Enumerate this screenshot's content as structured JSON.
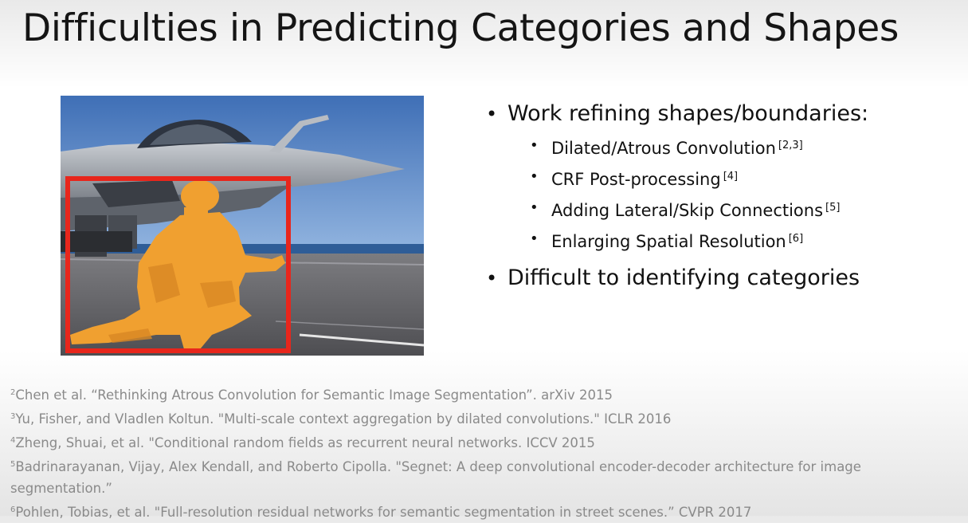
{
  "slide": {
    "title": "Difficulties in Predicting Categories and Shapes"
  },
  "bullets": {
    "main": [
      {
        "text": "Work refining shapes/boundaries:",
        "sub": [
          {
            "text": "Dilated/Atrous Convolution",
            "ref": "[2,3]"
          },
          {
            "text": "CRF Post-processing",
            "ref": "[4]"
          },
          {
            "text": "Adding Lateral/Skip Connections",
            "ref": "[5]"
          },
          {
            "text": "Enlarging Spatial Resolution",
            "ref": "[6]"
          }
        ]
      },
      {
        "text": "Difficult to identifying categories"
      }
    ]
  },
  "references": [
    {
      "num": "2",
      "text": "Chen et al.  “Rethinking Atrous Convolution for Semantic Image Segmentation”. arXiv 2015"
    },
    {
      "num": "3",
      "text": "Yu, Fisher, and Vladlen Koltun. \"Multi-scale context aggregation by dilated convolutions.\" ICLR 2016"
    },
    {
      "num": "4",
      "text": "Zheng, Shuai, et al. \"Conditional random fields as recurrent neural networks. ICCV 2015"
    },
    {
      "num": "5",
      "text": "Badrinarayanan, Vijay, Alex Kendall, and Roberto Cipolla. \"Segnet: A deep convolutional encoder-decoder architecture for image segmentation.”"
    },
    {
      "num": "6",
      "text": "Pohlen, Tobias, et al. \"Full-resolution residual networks for semantic segmentation in street scenes.” CVPR 2017"
    }
  ],
  "colors": {
    "bounding_box": "#e8261c",
    "person_mask": "#f0a030",
    "sky": "#5b86c4",
    "reference_text": "#8a8a8a"
  }
}
